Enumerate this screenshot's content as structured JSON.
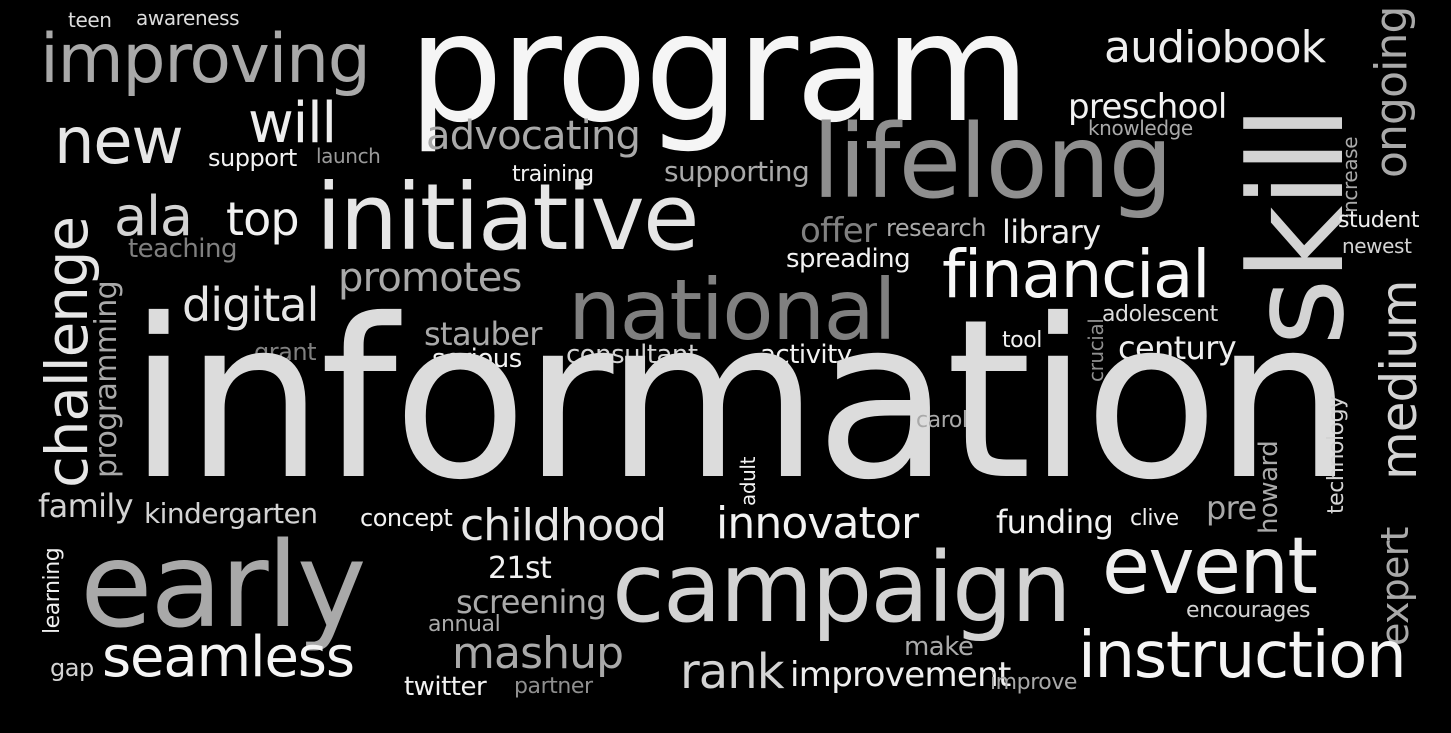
{
  "word_cloud": {
    "background": "#000000",
    "words": [
      {
        "id": "teen",
        "text": "teen",
        "color": "#dcdcdc",
        "orientation": "horizontal"
      },
      {
        "id": "awareness",
        "text": "awareness",
        "color": "#dcdcdc",
        "orientation": "horizontal"
      },
      {
        "id": "improving",
        "text": "improving",
        "color": "#a9a9a9",
        "orientation": "horizontal"
      },
      {
        "id": "program",
        "text": "program",
        "color": "#f5f5f5",
        "orientation": "horizontal"
      },
      {
        "id": "audiobook",
        "text": "audiobook",
        "color": "#eeeeee",
        "orientation": "horizontal"
      },
      {
        "id": "ongoing",
        "text": "ongoing",
        "color": "#a9a9a9",
        "orientation": "vertical"
      },
      {
        "id": "new",
        "text": "new",
        "color": "#e6e6e6",
        "orientation": "horizontal"
      },
      {
        "id": "will",
        "text": "will",
        "color": "#eeeeee",
        "orientation": "horizontal"
      },
      {
        "id": "support",
        "text": "support",
        "color": "#f2f2f2",
        "orientation": "horizontal"
      },
      {
        "id": "launch",
        "text": "launch",
        "color": "#9a9a9a",
        "orientation": "horizontal"
      },
      {
        "id": "advocating",
        "text": "advocating",
        "color": "#a9a9a9",
        "orientation": "horizontal"
      },
      {
        "id": "preschool",
        "text": "preschool",
        "color": "#f2f2f2",
        "orientation": "horizontal"
      },
      {
        "id": "knowledge",
        "text": "knowledge",
        "color": "#a9a9a9",
        "orientation": "horizontal"
      },
      {
        "id": "skill",
        "text": "skill",
        "color": "#d3d3d3",
        "orientation": "vertical"
      },
      {
        "id": "increase",
        "text": "increase",
        "color": "#a9a9a9",
        "orientation": "vertical"
      },
      {
        "id": "lifelong",
        "text": "lifelong",
        "color": "#8f8f8f",
        "orientation": "horizontal"
      },
      {
        "id": "training",
        "text": "training",
        "color": "#f2f2f2",
        "orientation": "horizontal"
      },
      {
        "id": "supporting",
        "text": "supporting",
        "color": "#a9a9a9",
        "orientation": "horizontal"
      },
      {
        "id": "challenge",
        "text": "challenge",
        "color": "#e6e6e6",
        "orientation": "vertical"
      },
      {
        "id": "ala",
        "text": "ala",
        "color": "#d3d3d3",
        "orientation": "horizontal"
      },
      {
        "id": "top",
        "text": "top",
        "color": "#f2f2f2",
        "orientation": "horizontal"
      },
      {
        "id": "initiative",
        "text": "initiative",
        "color": "#e6e6e6",
        "orientation": "horizontal"
      },
      {
        "id": "teaching",
        "text": "teaching",
        "color": "#808080",
        "orientation": "horizontal"
      },
      {
        "id": "offer",
        "text": "offer",
        "color": "#808080",
        "orientation": "horizontal"
      },
      {
        "id": "research",
        "text": "research",
        "color": "#a9a9a9",
        "orientation": "horizontal"
      },
      {
        "id": "library",
        "text": "library",
        "color": "#eeeeee",
        "orientation": "horizontal"
      },
      {
        "id": "student",
        "text": "student",
        "color": "#eeeeee",
        "orientation": "horizontal"
      },
      {
        "id": "newest",
        "text": "newest",
        "color": "#d3d3d3",
        "orientation": "horizontal"
      },
      {
        "id": "spreading",
        "text": "spreading",
        "color": "#f2f2f2",
        "orientation": "horizontal"
      },
      {
        "id": "financial",
        "text": "financial",
        "color": "#f7f7f7",
        "orientation": "horizontal"
      },
      {
        "id": "programming",
        "text": "programming",
        "color": "#a9a9a9",
        "orientation": "vertical"
      },
      {
        "id": "promotes",
        "text": "promotes",
        "color": "#a9a9a9",
        "orientation": "horizontal"
      },
      {
        "id": "national",
        "text": "national",
        "color": "#808080",
        "orientation": "horizontal"
      },
      {
        "id": "digital",
        "text": "digital",
        "color": "#e6e6e6",
        "orientation": "horizontal"
      },
      {
        "id": "adolescent",
        "text": "adolescent",
        "color": "#dcdcdc",
        "orientation": "horizontal"
      },
      {
        "id": "crucial",
        "text": "crucial",
        "color": "#8f8f8f",
        "orientation": "vertical"
      },
      {
        "id": "stauber",
        "text": "stauber",
        "color": "#a9a9a9",
        "orientation": "horizontal"
      },
      {
        "id": "tool",
        "text": "tool",
        "color": "#f2f2f2",
        "orientation": "horizontal"
      },
      {
        "id": "century",
        "text": "century",
        "color": "#eeeeee",
        "orientation": "horizontal"
      },
      {
        "id": "grant",
        "text": "grant",
        "color": "#808080",
        "orientation": "horizontal"
      },
      {
        "id": "serious",
        "text": "serious",
        "color": "#f2f2f2",
        "orientation": "horizontal"
      },
      {
        "id": "consultant",
        "text": "consultant",
        "color": "#d3d3d3",
        "orientation": "horizontal"
      },
      {
        "id": "activity",
        "text": "activity",
        "color": "#f2f2f2",
        "orientation": "horizontal"
      },
      {
        "id": "medium",
        "text": "medium",
        "color": "#d3d3d3",
        "orientation": "vertical"
      },
      {
        "id": "information",
        "text": "information",
        "color": "#dcdcdc",
        "orientation": "horizontal"
      },
      {
        "id": "carol",
        "text": "carol",
        "color": "#a9a9a9",
        "orientation": "horizontal"
      },
      {
        "id": "technology",
        "text": "technology",
        "color": "#d3d3d3",
        "orientation": "vertical"
      },
      {
        "id": "expert",
        "text": "expert",
        "color": "#a9a9a9",
        "orientation": "vertical"
      },
      {
        "id": "howard",
        "text": "howard",
        "color": "#a9a9a9",
        "orientation": "vertical"
      },
      {
        "id": "family",
        "text": "family",
        "color": "#d3d3d3",
        "orientation": "horizontal"
      },
      {
        "id": "kindergarten",
        "text": "kindergarten",
        "color": "#d3d3d3",
        "orientation": "horizontal"
      },
      {
        "id": "concept",
        "text": "concept",
        "color": "#f2f2f2",
        "orientation": "horizontal"
      },
      {
        "id": "adult",
        "text": "adult",
        "color": "#f2f2f2",
        "orientation": "vertical"
      },
      {
        "id": "childhood",
        "text": "childhood",
        "color": "#e6e6e6",
        "orientation": "horizontal"
      },
      {
        "id": "innovator",
        "text": "innovator",
        "color": "#f2f2f2",
        "orientation": "horizontal"
      },
      {
        "id": "funding",
        "text": "funding",
        "color": "#f2f2f2",
        "orientation": "horizontal"
      },
      {
        "id": "clive",
        "text": "clive",
        "color": "#eeeeee",
        "orientation": "horizontal"
      },
      {
        "id": "pre",
        "text": "pre",
        "color": "#a9a9a9",
        "orientation": "horizontal"
      },
      {
        "id": "learning",
        "text": "learning",
        "color": "#eeeeee",
        "orientation": "vertical"
      },
      {
        "id": "early",
        "text": "early",
        "color": "#a9a9a9",
        "orientation": "horizontal"
      },
      {
        "id": "21st",
        "text": "21st",
        "color": "#f2f2f2",
        "orientation": "horizontal"
      },
      {
        "id": "campaign",
        "text": "campaign",
        "color": "#d3d3d3",
        "orientation": "horizontal"
      },
      {
        "id": "event",
        "text": "event",
        "color": "#eeeeee",
        "orientation": "horizontal"
      },
      {
        "id": "screening",
        "text": "screening",
        "color": "#a9a9a9",
        "orientation": "horizontal"
      },
      {
        "id": "annual",
        "text": "annual",
        "color": "#a9a9a9",
        "orientation": "horizontal"
      },
      {
        "id": "encourages",
        "text": "encourages",
        "color": "#d3d3d3",
        "orientation": "horizontal"
      },
      {
        "id": "make",
        "text": "make",
        "color": "#a9a9a9",
        "orientation": "horizontal"
      },
      {
        "id": "gap",
        "text": "gap",
        "color": "#d3d3d3",
        "orientation": "horizontal"
      },
      {
        "id": "seamless",
        "text": "seamless",
        "color": "#f5f5f5",
        "orientation": "horizontal"
      },
      {
        "id": "mashup",
        "text": "mashup",
        "color": "#a9a9a9",
        "orientation": "horizontal"
      },
      {
        "id": "rank",
        "text": "rank",
        "color": "#d3d3d3",
        "orientation": "horizontal"
      },
      {
        "id": "improvement",
        "text": "improvement",
        "color": "#eeeeee",
        "orientation": "horizontal"
      },
      {
        "id": "improve",
        "text": "improve",
        "color": "#a9a9a9",
        "orientation": "horizontal"
      },
      {
        "id": "instruction",
        "text": "instruction",
        "color": "#f5f5f5",
        "orientation": "horizontal"
      },
      {
        "id": "twitter",
        "text": "twitter",
        "color": "#f2f2f2",
        "orientation": "horizontal"
      },
      {
        "id": "partner",
        "text": "partner",
        "color": "#8f8f8f",
        "orientation": "horizontal"
      }
    ]
  }
}
